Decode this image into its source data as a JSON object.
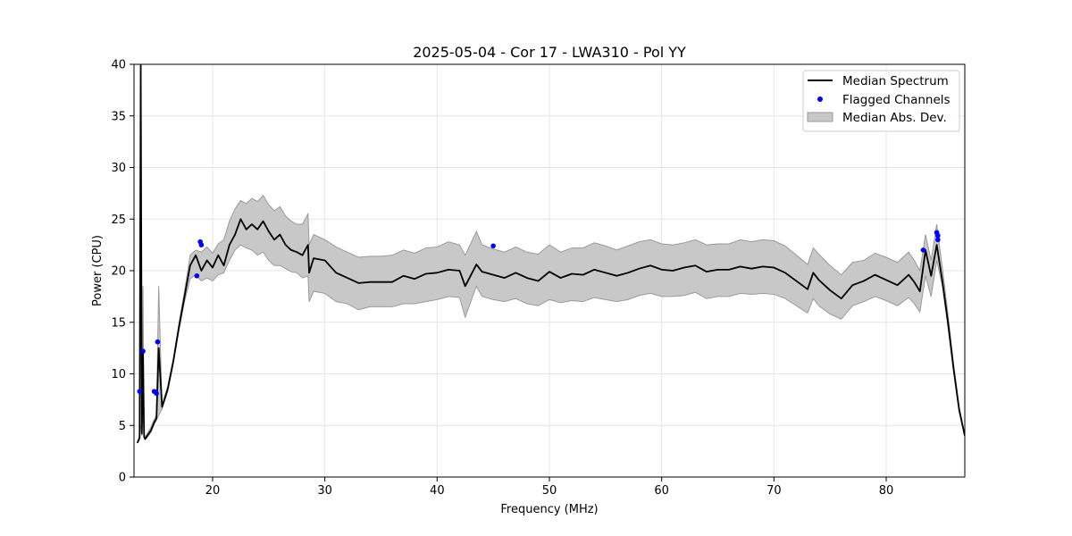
{
  "chart_data": {
    "type": "line",
    "title": "2025-05-04 - Cor 17 - LWA310 - Pol YY",
    "xlabel": "Frequency (MHz)",
    "ylabel": "Power (CPU)",
    "xlim": [
      13.0,
      87.0
    ],
    "ylim": [
      0,
      40
    ],
    "xticks": [
      "20",
      "30",
      "40",
      "50",
      "60",
      "70",
      "80"
    ],
    "yticks": [
      "0",
      "5",
      "10",
      "15",
      "20",
      "25",
      "30",
      "35",
      "40"
    ],
    "grid": true,
    "legend_position": "top-right",
    "legend": {
      "median": "Median Spectrum",
      "flagged": "Flagged Channels",
      "mad": "Median Abs. Dev."
    },
    "colors": {
      "median": "#000000",
      "flagged": "#0000ff",
      "mad_fill": "#c8c8c8",
      "mad_edge": "#9a9a9a",
      "grid": "#e6e6e6"
    },
    "series": [
      {
        "name": "Median Spectrum",
        "x": [
          13.3,
          13.5,
          13.6,
          13.7,
          13.8,
          13.9,
          14.0,
          14.5,
          14.8,
          15.0,
          15.2,
          15.5,
          16.0,
          16.5,
          17.0,
          17.5,
          18.0,
          18.5,
          19.0,
          19.5,
          20.0,
          20.5,
          21.0,
          21.5,
          22.0,
          22.5,
          23.0,
          23.5,
          24.0,
          24.5,
          25.0,
          25.5,
          26.0,
          26.5,
          27.0,
          27.5,
          28.0,
          28.5,
          28.6,
          29.0,
          30.0,
          31.0,
          32.0,
          33.0,
          34.0,
          35.0,
          36.0,
          37.0,
          38.0,
          39.0,
          40.0,
          41.0,
          42.0,
          42.5,
          43.5,
          44.0,
          45.0,
          46.0,
          47.0,
          48.0,
          49.0,
          50.0,
          51.0,
          52.0,
          53.0,
          54.0,
          55.0,
          56.0,
          57.0,
          58.0,
          59.0,
          60.0,
          61.0,
          62.0,
          63.0,
          64.0,
          65.0,
          66.0,
          67.0,
          68.0,
          69.0,
          70.0,
          71.0,
          72.0,
          73.0,
          73.5,
          74.0,
          75.0,
          76.0,
          77.0,
          78.0,
          79.0,
          80.0,
          81.0,
          82.0,
          82.5,
          83.0,
          83.5,
          84.0,
          84.5,
          85.0,
          85.5,
          86.0,
          86.5,
          87.0
        ],
        "values": [
          3.3,
          3.8,
          40.0,
          4.2,
          12.0,
          3.9,
          3.7,
          4.5,
          5.3,
          5.7,
          12.5,
          6.8,
          8.5,
          11.2,
          14.5,
          17.5,
          20.5,
          21.5,
          20.0,
          21.0,
          20.3,
          21.5,
          20.5,
          22.5,
          23.5,
          25.0,
          24.0,
          24.5,
          24.0,
          24.8,
          23.8,
          23.0,
          23.5,
          22.5,
          22.0,
          21.8,
          21.5,
          22.5,
          19.8,
          21.2,
          21.0,
          19.8,
          19.3,
          18.8,
          18.9,
          18.9,
          18.9,
          19.5,
          19.2,
          19.7,
          19.8,
          20.1,
          20.0,
          18.5,
          20.6,
          19.9,
          19.6,
          19.3,
          19.8,
          19.3,
          19.0,
          19.9,
          19.3,
          19.7,
          19.6,
          20.1,
          19.8,
          19.5,
          19.8,
          20.2,
          20.5,
          20.1,
          20.0,
          20.3,
          20.5,
          19.9,
          20.1,
          20.1,
          20.4,
          20.2,
          20.4,
          20.3,
          19.8,
          19.0,
          18.2,
          19.8,
          19.1,
          18.1,
          17.3,
          18.6,
          19.0,
          19.6,
          19.1,
          18.6,
          19.6,
          18.9,
          18.0,
          22.0,
          19.5,
          22.5,
          19.0,
          15.0,
          10.5,
          6.5,
          4.0
        ],
        "mad_lower": [
          3.3,
          3.7,
          5.0,
          4.0,
          8.0,
          3.7,
          3.6,
          4.3,
          5.1,
          5.5,
          6.0,
          6.6,
          8.3,
          11.0,
          14.2,
          17.0,
          19.2,
          19.6,
          19.0,
          19.3,
          19.0,
          19.6,
          19.8,
          21.0,
          22.0,
          22.5,
          22.2,
          22.0,
          21.5,
          21.8,
          21.0,
          20.5,
          20.5,
          20.2,
          19.9,
          19.8,
          19.3,
          19.5,
          17.0,
          18.0,
          17.8,
          17.0,
          16.8,
          16.2,
          16.5,
          16.5,
          16.5,
          16.8,
          16.8,
          17.0,
          17.2,
          17.5,
          17.4,
          15.5,
          18.5,
          17.5,
          17.2,
          17.0,
          17.3,
          16.8,
          16.6,
          17.2,
          16.9,
          17.1,
          17.0,
          17.4,
          17.2,
          17.0,
          17.2,
          17.6,
          17.8,
          17.5,
          17.5,
          17.6,
          17.9,
          17.3,
          17.5,
          17.5,
          17.8,
          17.7,
          17.8,
          17.7,
          17.3,
          16.6,
          15.9,
          17.3,
          16.6,
          15.8,
          15.3,
          16.6,
          17.0,
          17.5,
          17.1,
          16.6,
          17.4,
          16.8,
          16.0,
          19.5,
          17.5,
          21.0,
          18.5,
          14.5,
          10.2,
          6.3,
          3.9
        ],
        "mad_upper": [
          3.4,
          4.0,
          40.0,
          4.5,
          18.5,
          4.2,
          3.9,
          4.8,
          5.6,
          6.0,
          18.5,
          7.0,
          8.8,
          11.5,
          14.9,
          18.0,
          21.5,
          22.0,
          21.8,
          22.3,
          21.7,
          22.6,
          23.0,
          24.8,
          26.0,
          26.8,
          26.5,
          27.0,
          26.7,
          27.3,
          26.4,
          25.8,
          26.2,
          25.3,
          24.8,
          24.5,
          24.5,
          25.5,
          22.5,
          23.5,
          23.0,
          22.3,
          21.8,
          21.3,
          21.4,
          21.4,
          21.5,
          22.0,
          21.7,
          22.2,
          22.3,
          22.8,
          22.5,
          21.5,
          23.8,
          22.5,
          22.1,
          21.8,
          22.3,
          21.8,
          21.6,
          22.5,
          21.8,
          22.2,
          22.2,
          22.7,
          22.4,
          22.0,
          22.4,
          22.8,
          23.0,
          22.6,
          22.5,
          22.7,
          23.0,
          22.5,
          22.6,
          22.6,
          23.0,
          22.8,
          23.0,
          22.9,
          22.4,
          21.5,
          20.6,
          22.2,
          21.6,
          20.5,
          19.6,
          20.8,
          21.0,
          21.7,
          21.3,
          20.8,
          21.8,
          21.0,
          20.0,
          23.5,
          21.0,
          24.5,
          20.3,
          15.8,
          11.0,
          6.8,
          4.1
        ]
      }
    ],
    "flagged_channels": {
      "name": "Flagged Channels",
      "x": [
        13.5,
        13.8,
        14.8,
        15.0,
        15.1,
        18.6,
        18.9,
        19.0,
        45.0,
        83.3,
        84.5,
        84.6,
        84.6
      ],
      "values": [
        8.3,
        12.2,
        8.3,
        8.1,
        13.1,
        19.5,
        22.8,
        22.5,
        22.4,
        22.0,
        23.7,
        23.4,
        23.0
      ]
    }
  }
}
